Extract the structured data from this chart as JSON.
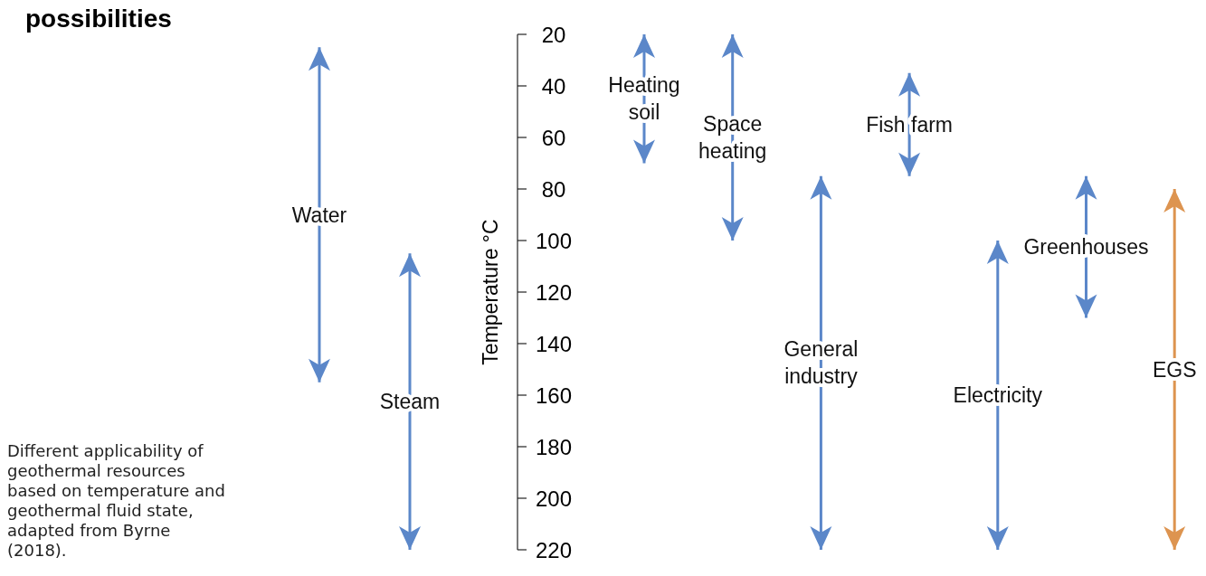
{
  "chart_data": [
    {
      "type": "bar",
      "title": "possibilities",
      "categories": [
        "Water",
        "Steam"
      ],
      "base": [
        25,
        105
      ],
      "values": [
        130,
        115
      ],
      "colors": [
        "#5b87c9",
        "#5b87c9"
      ],
      "ylim": [
        220,
        20
      ],
      "yticks": [
        20,
        40,
        60,
        80,
        100,
        120,
        140,
        160,
        180,
        200,
        220
      ],
      "tick_labels": false,
      "annotations": [
        "Different applicability of geothermal resources based on temperature and geothermal fluid state, adapted from Byrne (2018)."
      ]
    },
    {
      "type": "bar",
      "ylabel": "Temperature °C",
      "categories": [
        "Heating\nsoil",
        "Space\nheating",
        "General\nindustry",
        "Fish farm",
        "Electricity",
        "Greenhouses",
        "EGS"
      ],
      "base": [
        20,
        20,
        75,
        35,
        100,
        75,
        80
      ],
      "values": [
        50,
        80,
        145,
        40,
        120,
        55,
        140
      ],
      "colors": [
        "#5b87c9",
        "#5b87c9",
        "#5b87c9",
        "#5b87c9",
        "#5b87c9",
        "#5b87c9",
        "#dd9450"
      ],
      "ylim": [
        220,
        20
      ],
      "yticks": [
        20,
        40,
        60,
        80,
        100,
        120,
        140,
        160,
        180,
        200,
        220
      ]
    }
  ]
}
